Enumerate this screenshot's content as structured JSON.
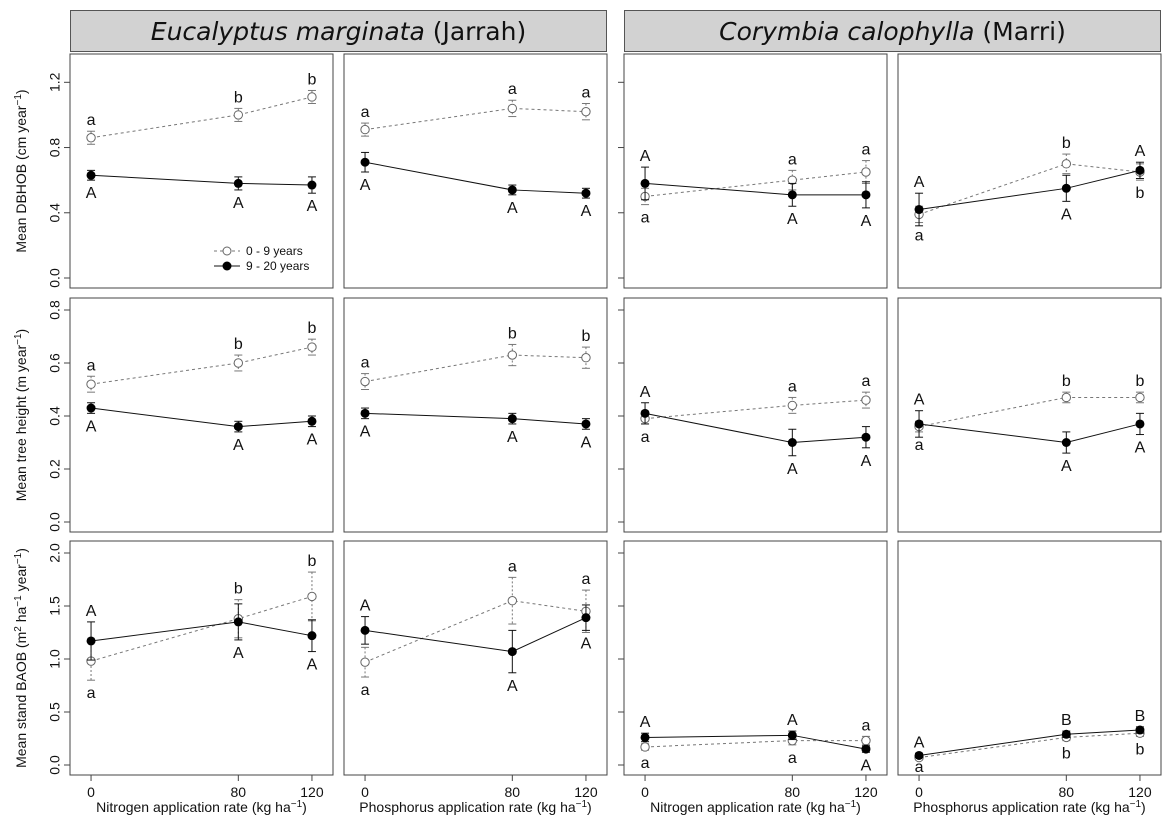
{
  "species": [
    {
      "genus_species": "Eucalyptus marginata",
      "common": "(Jarrah)"
    },
    {
      "genus_species": "Corymbia calophylla",
      "common": "(Marri)"
    }
  ],
  "legend": {
    "open": "0 - 9 years",
    "closed": "9 - 20 years"
  },
  "chart_data": {
    "type": "line",
    "x": [
      0,
      80,
      120
    ],
    "xticks": [
      "0",
      "80",
      "120"
    ],
    "columns": [
      {
        "species": "Eucalyptus marginata (Jarrah)",
        "nutrient": "Nitrogen",
        "xlabel": "Nitrogen application rate (kg ha",
        "xlabel_sup": "−1",
        "xlabel_end": ")"
      },
      {
        "species": "Eucalyptus marginata (Jarrah)",
        "nutrient": "Phosphorus",
        "xlabel": "Phosphorus application rate (kg ha",
        "xlabel_sup": "−1",
        "xlabel_end": ")"
      },
      {
        "species": "Corymbia calophylla (Marri)",
        "nutrient": "Nitrogen",
        "xlabel": "Nitrogen application rate (kg ha",
        "xlabel_sup": "−1",
        "xlabel_end": ")"
      },
      {
        "species": "Corymbia calophylla (Marri)",
        "nutrient": "Phosphorus",
        "xlabel": "Phosphorus application rate (kg ha",
        "xlabel_sup": "−1",
        "xlabel_end": ")"
      }
    ],
    "rows": [
      {
        "ylabel_parts": [
          [
            "Mean DBHOB (cm year",
            false
          ],
          [
            "−1",
            true
          ],
          [
            ")",
            false
          ]
        ],
        "ylim": [
          0,
          1.3
        ],
        "yticks": [
          0.0,
          0.4,
          0.8,
          1.2
        ],
        "ytick_labels": [
          "0.0",
          "0.4",
          "0.8",
          "1.2"
        ],
        "panels": [
          {
            "open": [
              0.86,
              1.0,
              1.11
            ],
            "open_err": [
              0.04,
              0.04,
              0.04
            ],
            "open_letters": [
              "a",
              "b",
              "b"
            ],
            "closed": [
              0.63,
              0.58,
              0.57
            ],
            "closed_err": [
              0.03,
              0.04,
              0.05
            ],
            "closed_letters": [
              "A",
              "A",
              "A"
            ]
          },
          {
            "open": [
              0.91,
              1.04,
              1.02
            ],
            "open_err": [
              0.04,
              0.05,
              0.05
            ],
            "open_letters": [
              "a",
              "a",
              "a"
            ],
            "closed": [
              0.71,
              0.54,
              0.52
            ],
            "closed_err": [
              0.06,
              0.03,
              0.03
            ],
            "closed_letters": [
              "A",
              "A",
              "A"
            ]
          },
          {
            "open": [
              0.5,
              0.6,
              0.65
            ],
            "open_err": [
              0.05,
              0.06,
              0.07
            ],
            "open_letters": [
              "a",
              "a",
              "a"
            ],
            "closed": [
              0.58,
              0.51,
              0.51
            ],
            "closed_err": [
              0.1,
              0.07,
              0.08
            ],
            "closed_letters": [
              "A",
              "A",
              "A"
            ]
          },
          {
            "open": [
              0.39,
              0.7,
              0.65
            ],
            "open_err": [
              0.05,
              0.06,
              0.05
            ],
            "open_letters": [
              "a",
              "b",
              "b"
            ],
            "closed": [
              0.42,
              0.55,
              0.66
            ],
            "closed_err": [
              0.1,
              0.08,
              0.05
            ],
            "closed_letters": [
              "A",
              "A",
              "A"
            ]
          }
        ]
      },
      {
        "ylabel_parts": [
          [
            "Mean tree height (m year",
            false
          ],
          [
            "−1",
            true
          ],
          [
            ")",
            false
          ]
        ],
        "ylim": [
          0,
          0.8
        ],
        "yticks": [
          0.0,
          0.2,
          0.4,
          0.6,
          0.8
        ],
        "ytick_labels": [
          "0.0",
          "0.2",
          "0.4",
          "0.6",
          "0.8"
        ],
        "panels": [
          {
            "open": [
              0.52,
              0.6,
              0.66
            ],
            "open_err": [
              0.03,
              0.03,
              0.03
            ],
            "open_letters": [
              "a",
              "b",
              "b"
            ],
            "closed": [
              0.43,
              0.36,
              0.38
            ],
            "closed_err": [
              0.02,
              0.02,
              0.02
            ],
            "closed_letters": [
              "A",
              "A",
              "A"
            ]
          },
          {
            "open": [
              0.53,
              0.63,
              0.62
            ],
            "open_err": [
              0.03,
              0.04,
              0.04
            ],
            "open_letters": [
              "a",
              "b",
              "b"
            ],
            "closed": [
              0.41,
              0.39,
              0.37
            ],
            "closed_err": [
              0.02,
              0.02,
              0.02
            ],
            "closed_letters": [
              "A",
              "A",
              "A"
            ]
          },
          {
            "open": [
              0.39,
              0.44,
              0.46
            ],
            "open_err": [
              0.02,
              0.03,
              0.03
            ],
            "open_letters": [
              "a",
              "a",
              "a"
            ],
            "closed": [
              0.41,
              0.3,
              0.32
            ],
            "closed_err": [
              0.04,
              0.05,
              0.04
            ],
            "closed_letters": [
              "A",
              "A",
              "A"
            ]
          },
          {
            "open": [
              0.36,
              0.47,
              0.47
            ],
            "open_err": [
              0.02,
              0.02,
              0.02
            ],
            "open_letters": [
              "a",
              "b",
              "b"
            ],
            "closed": [
              0.37,
              0.3,
              0.37
            ],
            "closed_err": [
              0.05,
              0.04,
              0.04
            ],
            "closed_letters": [
              "A",
              "A",
              "A"
            ]
          }
        ]
      },
      {
        "ylabel_parts": [
          [
            "Mean stand BAOB (m",
            false
          ],
          [
            "2",
            true
          ],
          [
            " ha",
            false
          ],
          [
            "−1",
            true
          ],
          [
            " year",
            false
          ],
          [
            "−1",
            true
          ],
          [
            ")",
            false
          ]
        ],
        "ylim": [
          0,
          2.0
        ],
        "yticks": [
          0.0,
          0.5,
          1.0,
          1.5,
          2.0
        ],
        "ytick_labels": [
          "0.0",
          "0.5",
          "1.0",
          "1.5",
          "2.0"
        ],
        "panels": [
          {
            "open": [
              0.98,
              1.38,
              1.59
            ],
            "open_err": [
              0.18,
              0.18,
              0.23
            ],
            "open_letters": [
              "a",
              "b",
              "b"
            ],
            "closed": [
              1.17,
              1.35,
              1.22
            ],
            "closed_err": [
              0.18,
              0.17,
              0.15
            ],
            "closed_letters": [
              "A",
              "A",
              "A"
            ]
          },
          {
            "open": [
              0.97,
              1.55,
              1.45
            ],
            "open_err": [
              0.14,
              0.22,
              0.2
            ],
            "open_letters": [
              "a",
              "a",
              "a"
            ],
            "closed": [
              1.27,
              1.07,
              1.39
            ],
            "closed_err": [
              0.13,
              0.2,
              0.12
            ],
            "closed_letters": [
              "A",
              "A",
              "A"
            ]
          },
          {
            "open": [
              0.17,
              0.23,
              0.23
            ],
            "open_err": [
              0.03,
              0.04,
              0.04
            ],
            "open_letters": [
              "a",
              "a",
              "a"
            ],
            "closed": [
              0.26,
              0.28,
              0.15
            ],
            "closed_err": [
              0.04,
              0.04,
              0.03
            ],
            "closed_letters": [
              "A",
              "A",
              "A"
            ]
          },
          {
            "open": [
              0.07,
              0.26,
              0.3
            ],
            "open_err": [
              0.02,
              0.03,
              0.03
            ],
            "open_letters": [
              "a",
              "b",
              "b"
            ],
            "closed": [
              0.09,
              0.29,
              0.33
            ],
            "closed_err": [
              0.02,
              0.03,
              0.03
            ],
            "closed_letters": [
              "A",
              "B",
              "B"
            ]
          }
        ]
      }
    ]
  }
}
